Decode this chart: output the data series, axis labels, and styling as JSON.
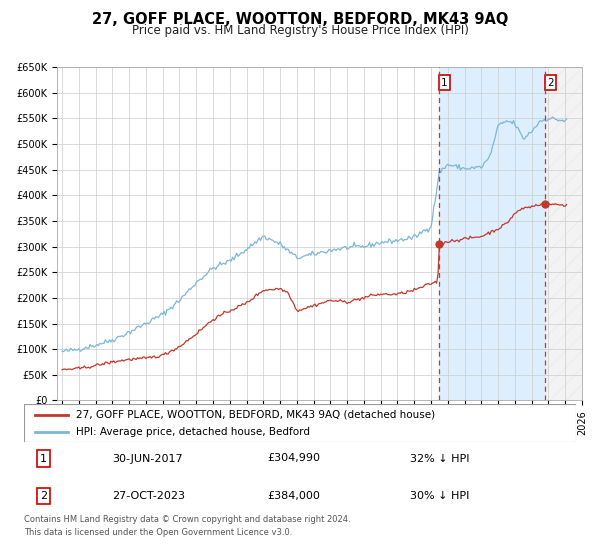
{
  "title": "27, GOFF PLACE, WOOTTON, BEDFORD, MK43 9AQ",
  "subtitle": "Price paid vs. HM Land Registry's House Price Index (HPI)",
  "ylim": [
    0,
    650000
  ],
  "xlim_start": 1995.0,
  "xlim_end": 2026.0,
  "yticks": [
    0,
    50000,
    100000,
    150000,
    200000,
    250000,
    300000,
    350000,
    400000,
    450000,
    500000,
    550000,
    600000,
    650000
  ],
  "ytick_labels": [
    "£0",
    "£50K",
    "£100K",
    "£150K",
    "£200K",
    "£250K",
    "£300K",
    "£350K",
    "£400K",
    "£450K",
    "£500K",
    "£550K",
    "£600K",
    "£650K"
  ],
  "hpi_color": "#7bb8d8",
  "price_color": "#c0392b",
  "marker1_date": 2017.5,
  "marker1_value": 304990,
  "marker2_date": 2023.82,
  "marker2_value": 384000,
  "shade_color": "#ddeeff",
  "hatch_color": "#cccccc",
  "legend_label_price": "27, GOFF PLACE, WOOTTON, BEDFORD, MK43 9AQ (detached house)",
  "legend_label_hpi": "HPI: Average price, detached house, Bedford",
  "table_row1": [
    "1",
    "30-JUN-2017",
    "£304,990",
    "32% ↓ HPI"
  ],
  "table_row2": [
    "2",
    "27-OCT-2023",
    "£384,000",
    "30% ↓ HPI"
  ],
  "footer1": "Contains HM Land Registry data © Crown copyright and database right 2024.",
  "footer2": "This data is licensed under the Open Government Licence v3.0.",
  "bg_color": "#ffffff",
  "grid_color": "#cccccc",
  "title_fontsize": 10.5,
  "subtitle_fontsize": 8.5,
  "tick_fontsize": 7,
  "legend_fontsize": 7.5,
  "table_fontsize": 8,
  "footer_fontsize": 6
}
